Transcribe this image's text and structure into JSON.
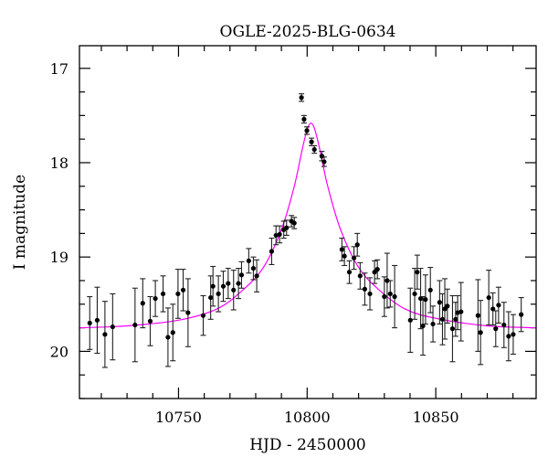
{
  "chart_data": {
    "type": "scatter",
    "title": "OGLE-2025-BLG-0634",
    "xlabel": "HJD - 2450000",
    "ylabel": "I magnitude",
    "xlim": [
      10711.5,
      10889
    ],
    "ylim": [
      16.76,
      20.5
    ],
    "y_inverted": true,
    "x_ticks": [
      "10750",
      "10800",
      "10850"
    ],
    "x_tick_values": [
      10750,
      10800,
      10850
    ],
    "x_minor_step": 10,
    "y_ticks": [
      "17",
      "18",
      "19",
      "20"
    ],
    "y_tick_values": [
      17,
      18,
      19,
      20
    ],
    "y_minor_step": 0.25,
    "grid": false,
    "colors": {
      "points": "#000000",
      "model": "#ff00ff"
    },
    "points": [
      [
        10715.5,
        19.7,
        0.28
      ],
      [
        10718.4,
        19.67,
        0.35
      ],
      [
        10721.4,
        19.82,
        0.35
      ],
      [
        10724.4,
        19.74,
        0.35
      ],
      [
        10733.1,
        19.72,
        0.39
      ],
      [
        10736.1,
        19.49,
        0.26
      ],
      [
        10739.0,
        19.68,
        0.26
      ],
      [
        10741.0,
        19.44,
        0.19
      ],
      [
        10744.0,
        19.39,
        0.19
      ],
      [
        10745.9,
        19.85,
        0.31
      ],
      [
        10747.8,
        19.8,
        0.3
      ],
      [
        10749.8,
        19.39,
        0.26
      ],
      [
        10751.8,
        19.35,
        0.22
      ],
      [
        10753.7,
        19.59,
        0.36
      ],
      [
        10759.6,
        19.62,
        0.21
      ],
      [
        10762.5,
        19.43,
        0.23
      ],
      [
        10763.4,
        19.31,
        0.21
      ],
      [
        10765.5,
        19.39,
        0.19
      ],
      [
        10767.4,
        19.31,
        0.16
      ],
      [
        10769.3,
        19.28,
        0.16
      ],
      [
        10771.4,
        19.35,
        0.21
      ],
      [
        10773.3,
        19.28,
        0.16
      ],
      [
        10774.5,
        19.19,
        0.14
      ],
      [
        10777.3,
        19.04,
        0.13
      ],
      [
        10779.1,
        19.12,
        0.12
      ],
      [
        10780.4,
        19.2,
        0.17
      ],
      [
        10786.2,
        18.94,
        0.14
      ],
      [
        10787.9,
        18.77,
        0.1
      ],
      [
        10789.3,
        18.76,
        0.09
      ],
      [
        10790.9,
        18.71,
        0.09
      ],
      [
        10792.0,
        18.69,
        0.08
      ],
      [
        10793.9,
        18.62,
        0.06
      ],
      [
        10795.0,
        18.64,
        0.06
      ],
      [
        10797.8,
        17.31,
        0.04
      ],
      [
        10798.8,
        17.54,
        0.04
      ],
      [
        10799.9,
        17.66,
        0.04
      ],
      [
        10801.7,
        17.78,
        0.04
      ],
      [
        10802.8,
        17.86,
        0.04
      ],
      [
        10805.7,
        17.93,
        0.05
      ],
      [
        10806.6,
        17.99,
        0.05
      ],
      [
        10813.5,
        18.92,
        0.12
      ],
      [
        10814.5,
        18.99,
        0.1
      ],
      [
        10816.4,
        19.16,
        0.12
      ],
      [
        10818.2,
        19.01,
        0.12
      ],
      [
        10819.5,
        18.87,
        0.12
      ],
      [
        10820.6,
        19.2,
        0.14
      ],
      [
        10822.4,
        19.34,
        0.17
      ],
      [
        10824.4,
        19.39,
        0.17
      ],
      [
        10826.2,
        19.16,
        0.12
      ],
      [
        10827.3,
        19.13,
        0.1
      ],
      [
        10830.0,
        19.42,
        0.21
      ],
      [
        10831.1,
        19.25,
        0.29
      ],
      [
        10832.3,
        19.39,
        0.14
      ],
      [
        10834.0,
        19.42,
        0.33
      ],
      [
        10840.1,
        19.67,
        0.34
      ],
      [
        10841.8,
        19.39,
        0.27
      ],
      [
        10842.8,
        19.16,
        0.18
      ],
      [
        10844.1,
        19.44,
        0.32
      ],
      [
        10845.0,
        19.73,
        0.31
      ],
      [
        10846.0,
        19.45,
        0.26
      ],
      [
        10847.9,
        19.35,
        0.24
      ],
      [
        10848.9,
        19.71,
        0.19
      ],
      [
        10851.5,
        19.48,
        0.23
      ],
      [
        10852.6,
        19.66,
        0.27
      ],
      [
        10853.5,
        19.55,
        0.32
      ],
      [
        10854.5,
        19.52,
        0.18
      ],
      [
        10856.5,
        19.76,
        0.35
      ],
      [
        10857.7,
        19.66,
        0.18
      ],
      [
        10858.5,
        19.59,
        0.18
      ],
      [
        10859.8,
        19.58,
        0.31
      ],
      [
        10866.4,
        19.62,
        0.38
      ],
      [
        10867.4,
        19.8,
        0.34
      ],
      [
        10870.6,
        19.43,
        0.29
      ],
      [
        10872.2,
        19.55,
        0.17
      ],
      [
        10873.3,
        19.76,
        0.19
      ],
      [
        10874.4,
        19.51,
        0.19
      ],
      [
        10876.5,
        19.72,
        0.24
      ],
      [
        10878.3,
        19.84,
        0.26
      ],
      [
        10880.1,
        19.82,
        0.21
      ],
      [
        10883.2,
        19.61,
        0.18
      ]
    ],
    "points_columns": [
      "HJD - 2450000",
      "I magnitude",
      "error"
    ],
    "model_curve": [
      [
        10711.5,
        19.75
      ],
      [
        10730,
        19.73
      ],
      [
        10750,
        19.67
      ],
      [
        10765,
        19.55
      ],
      [
        10775,
        19.35
      ],
      [
        10783,
        19.11
      ],
      [
        10790,
        18.71
      ],
      [
        10795,
        18.25
      ],
      [
        10798,
        17.87
      ],
      [
        10800,
        17.65
      ],
      [
        10801.5,
        17.58
      ],
      [
        10803,
        17.65
      ],
      [
        10805,
        17.87
      ],
      [
        10808,
        18.25
      ],
      [
        10813,
        18.71
      ],
      [
        10820,
        19.11
      ],
      [
        10828,
        19.35
      ],
      [
        10838,
        19.55
      ],
      [
        10850,
        19.65
      ],
      [
        10870,
        19.73
      ],
      [
        10889,
        19.75
      ]
    ]
  }
}
